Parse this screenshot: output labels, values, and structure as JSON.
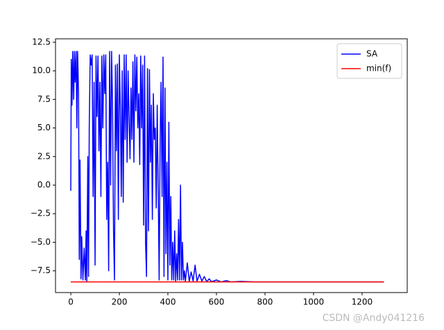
{
  "chart_data": {
    "type": "line",
    "xlim": [
      -63,
      1386
    ],
    "ylim": [
      -9.4,
      12.8
    ],
    "xticks": [
      0,
      200,
      400,
      600,
      800,
      1000,
      1200
    ],
    "yticks": [
      {
        "value": -7.5,
        "label": "−7.5"
      },
      {
        "value": -5,
        "label": "−5.0"
      },
      {
        "value": -2.5,
        "label": "−2.5"
      },
      {
        "value": 0,
        "label": "0.0"
      },
      {
        "value": 2.5,
        "label": "2.5"
      },
      {
        "value": 5,
        "label": "5.0"
      },
      {
        "value": 7.5,
        "label": "7.5"
      },
      {
        "value": 10,
        "label": "10.0"
      },
      {
        "value": 12.5,
        "label": "12.5"
      }
    ],
    "legend": "upper right",
    "series": [
      {
        "name": "SA",
        "color": "#0000ff",
        "x": [
          0,
          2,
          5,
          8,
          12,
          15,
          18,
          22,
          25,
          28,
          32,
          35,
          38,
          42,
          45,
          50,
          55,
          60,
          63,
          66,
          70,
          73,
          76,
          80,
          84,
          88,
          92,
          96,
          100,
          104,
          108,
          112,
          116,
          120,
          124,
          128,
          132,
          136,
          140,
          144,
          148,
          152,
          156,
          160,
          164,
          168,
          172,
          176,
          180,
          184,
          188,
          192,
          196,
          200,
          204,
          208,
          212,
          216,
          220,
          224,
          228,
          232,
          236,
          240,
          244,
          248,
          252,
          256,
          260,
          264,
          268,
          272,
          276,
          280,
          284,
          288,
          292,
          296,
          300,
          304,
          308,
          312,
          316,
          320,
          324,
          328,
          332,
          336,
          340,
          344,
          348,
          352,
          356,
          360,
          364,
          368,
          372,
          376,
          380,
          384,
          388,
          392,
          396,
          400,
          404,
          408,
          412,
          416,
          420,
          424,
          428,
          432,
          436,
          440,
          444,
          448,
          452,
          456,
          460,
          464,
          468,
          472,
          480,
          488,
          496,
          504,
          512,
          520,
          530,
          540,
          550,
          560,
          570,
          580,
          600,
          620,
          640,
          660,
          700,
          760,
          1290
        ],
        "values": [
          -0.5,
          11,
          7,
          11.7,
          7.5,
          11.7,
          9,
          11.7,
          5,
          11.7,
          8,
          -6.5,
          2.2,
          -8.2,
          -4.5,
          -8.3,
          -5.5,
          -8.3,
          -4,
          -8.4,
          2.5,
          -8,
          5,
          11.4,
          10.5,
          11.4,
          -1,
          9,
          -7,
          11.3,
          6,
          11.3,
          3,
          9,
          -1,
          11.3,
          5,
          11.4,
          8,
          11.4,
          -3,
          2,
          -7.5,
          11.7,
          0,
          11.7,
          7,
          -4,
          -8.3,
          10.5,
          3,
          10.6,
          -3,
          11.4,
          7,
          -1,
          10,
          -1.5,
          11.4,
          4,
          11.4,
          2,
          10,
          6,
          2.3,
          8.5,
          4,
          10.8,
          2,
          11.4,
          6.5,
          11.2,
          5,
          8,
          1.8,
          11.3,
          5,
          10.5,
          -3.5,
          11.3,
          -5,
          -8,
          10.2,
          -4,
          10.1,
          2,
          7,
          -3,
          8,
          4,
          5,
          -2,
          7,
          0,
          -8.3,
          4,
          9,
          -1,
          11.2,
          -8,
          8.5,
          -6,
          2,
          -8.3,
          5.5,
          -7,
          -1,
          -8.3,
          -5,
          -8.3,
          -4,
          -8.4,
          -6,
          -8.3,
          -3,
          -8.3,
          0,
          -8.3,
          -5,
          -8.3,
          -7.5,
          -8.4,
          -6.8,
          -8.4,
          -7.6,
          -8.4,
          -7,
          -8.4,
          -7.8,
          -8.4,
          -8,
          -8.45,
          -8.2,
          -8.45,
          -8.3,
          -8.47,
          -8.35,
          -8.47,
          -8.42,
          -8.47,
          -8.47
        ]
      },
      {
        "name": "min(f)",
        "color": "#ff0000",
        "x": [
          0,
          1290
        ],
        "values": [
          -8.47,
          -8.47
        ]
      }
    ]
  },
  "watermark": "CSDN @Andy041216"
}
